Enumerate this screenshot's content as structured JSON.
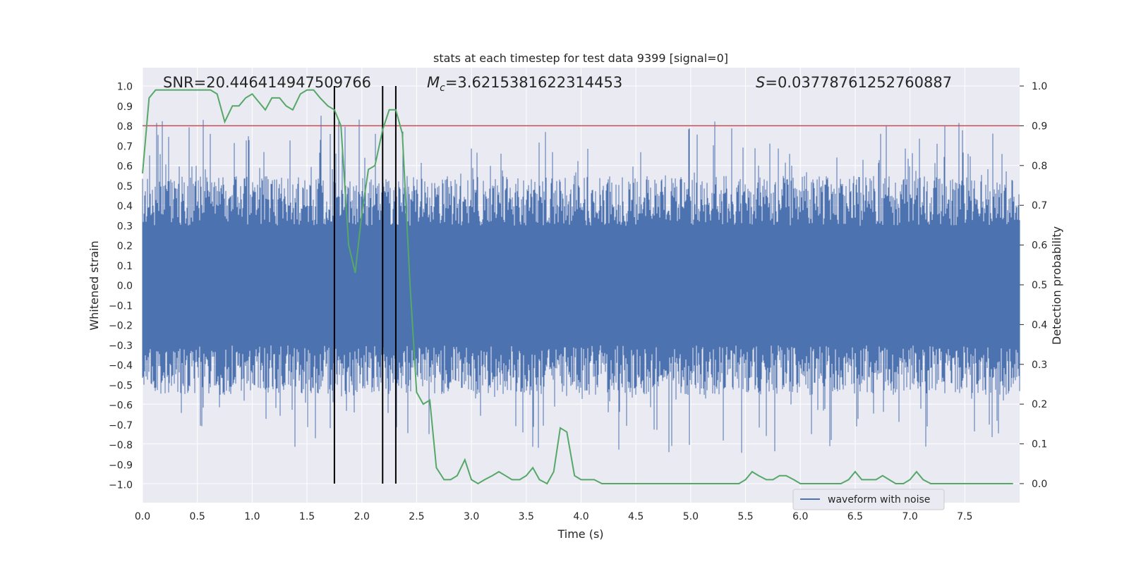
{
  "chart_data": {
    "type": "line",
    "title": "stats at each timestep for test data 9399 [signal=0]",
    "xlabel": "Time (s)",
    "ylabel": "Whitened strain",
    "y2label": "Detection probability",
    "xlim": [
      0,
      8
    ],
    "ylim": [
      -1.1,
      1.1
    ],
    "y2lim": [
      -0.05,
      1.05
    ],
    "xticks": [
      "0.0",
      "0.5",
      "1.0",
      "1.5",
      "2.0",
      "2.5",
      "3.0",
      "3.5",
      "4.0",
      "4.5",
      "5.0",
      "5.5",
      "6.0",
      "6.5",
      "7.0",
      "7.5"
    ],
    "yticks": [
      "1.0",
      "0.9",
      "0.8",
      "0.7",
      "0.6",
      "0.5",
      "0.4",
      "0.3",
      "0.2",
      "0.1",
      "0.0",
      "−0.1",
      "−0.2",
      "−0.3",
      "−0.4",
      "−0.5",
      "−0.6",
      "−0.7",
      "−0.8",
      "−0.9",
      "−1.0"
    ],
    "y2ticks": [
      "1.0",
      "0.9",
      "0.8",
      "0.7",
      "0.6",
      "0.5",
      "0.4",
      "0.3",
      "0.2",
      "0.1",
      "0.0"
    ],
    "annotations": {
      "snr": "SNR=20.446414947509766",
      "mc_symbol": "M",
      "mc_sub": "c",
      "mc_value": "=3.6215381622314453",
      "s_symbol": "S",
      "s_value": "=0.03778761252760887"
    },
    "threshold": 0.9,
    "vlines": [
      1.75,
      2.19,
      2.31
    ],
    "legend": {
      "label": "waveform with noise",
      "placement": "lower-right"
    },
    "series": [
      {
        "name": "waveform with noise",
        "color": "#4c72b0",
        "description": "whitened strain noise, amplitude about ±0.5 with spikes up to about ±0.95"
      },
      {
        "name": "Detection probability",
        "color": "#55a868",
        "x": [
          0.0,
          0.06,
          0.12,
          0.18,
          0.25,
          0.5,
          0.62,
          0.68,
          0.75,
          0.82,
          0.88,
          0.94,
          1.0,
          1.06,
          1.12,
          1.18,
          1.25,
          1.31,
          1.37,
          1.44,
          1.5,
          1.56,
          1.62,
          1.69,
          1.75,
          1.81,
          1.88,
          1.94,
          2.0,
          2.06,
          2.12,
          2.19,
          2.25,
          2.31,
          2.37,
          2.44,
          2.5,
          2.56,
          2.62,
          2.68,
          2.75,
          2.81,
          2.87,
          2.94,
          3.0,
          3.06,
          3.12,
          3.19,
          3.25,
          3.31,
          3.37,
          3.44,
          3.5,
          3.56,
          3.62,
          3.69,
          3.75,
          3.81,
          3.87,
          3.94,
          4.0,
          4.06,
          4.12,
          4.19,
          4.25,
          4.31,
          4.37,
          4.44,
          4.5,
          4.56,
          4.62,
          4.69,
          4.75,
          4.81,
          4.87,
          4.94,
          5.0,
          5.06,
          5.12,
          5.19,
          5.25,
          5.31,
          5.37,
          5.44,
          5.5,
          5.56,
          5.62,
          5.69,
          5.75,
          5.81,
          5.87,
          5.94,
          6.0,
          6.06,
          6.12,
          6.19,
          6.25,
          6.31,
          6.37,
          6.44,
          6.5,
          6.56,
          6.62,
          6.69,
          6.75,
          6.81,
          6.87,
          6.94,
          7.0,
          7.06,
          7.12,
          7.19,
          7.25,
          7.31,
          7.37,
          7.44,
          7.5,
          7.56,
          7.62,
          7.69,
          7.75,
          7.81,
          7.87,
          7.94
        ],
        "values": [
          0.78,
          0.97,
          0.99,
          0.99,
          0.99,
          0.99,
          0.99,
          0.98,
          0.91,
          0.95,
          0.95,
          0.97,
          0.98,
          0.96,
          0.94,
          0.97,
          0.97,
          0.95,
          0.94,
          0.98,
          0.99,
          0.99,
          0.97,
          0.95,
          0.94,
          0.9,
          0.6,
          0.53,
          0.68,
          0.79,
          0.8,
          0.89,
          0.94,
          0.94,
          0.88,
          0.5,
          0.23,
          0.2,
          0.21,
          0.04,
          0.01,
          0.01,
          0.02,
          0.06,
          0.01,
          0.0,
          0.01,
          0.02,
          0.03,
          0.02,
          0.01,
          0.01,
          0.02,
          0.04,
          0.01,
          0.0,
          0.03,
          0.14,
          0.13,
          0.02,
          0.01,
          0.01,
          0.01,
          0.0,
          0.0,
          0.0,
          0.0,
          0.0,
          0.0,
          0.0,
          0.0,
          0.0,
          0.0,
          0.0,
          0.0,
          0.0,
          0.0,
          0.0,
          0.0,
          0.0,
          0.0,
          0.0,
          0.0,
          0.0,
          0.01,
          0.03,
          0.02,
          0.01,
          0.01,
          0.02,
          0.02,
          0.01,
          0.0,
          0.0,
          0.0,
          0.0,
          0.0,
          0.0,
          0.0,
          0.01,
          0.03,
          0.01,
          0.01,
          0.01,
          0.02,
          0.01,
          0.0,
          0.0,
          0.01,
          0.03,
          0.01,
          0.0,
          0.0,
          0.0,
          0.0,
          0.0,
          0.0,
          0.0,
          0.0,
          0.0,
          0.0,
          0.0,
          0.0,
          0.0
        ]
      }
    ]
  }
}
